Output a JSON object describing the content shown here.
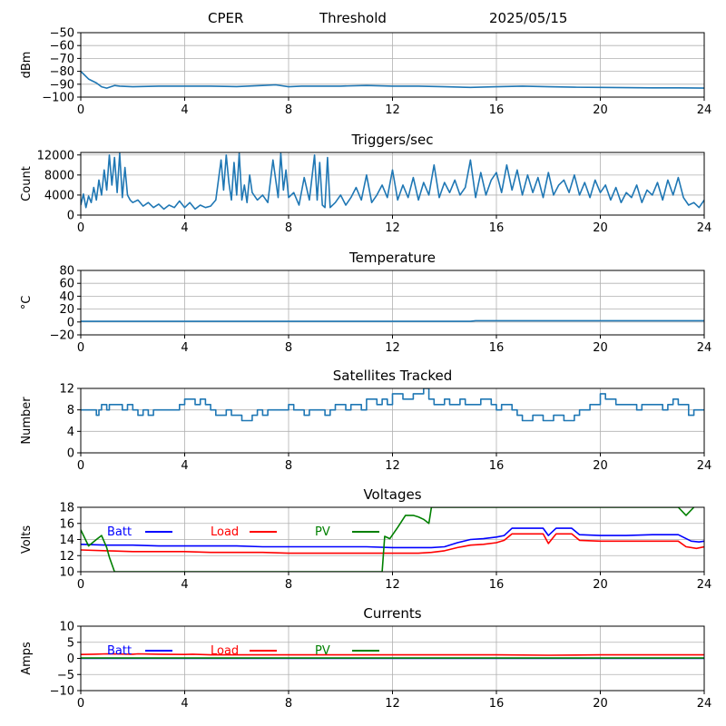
{
  "header": {
    "site": "CPER",
    "mode": "Threshold",
    "date": "2025/05/15"
  },
  "colors": {
    "series": "#1f77b4",
    "batt": "#0000ff",
    "load": "#ff0000",
    "pv": "#008000",
    "grid": "#b0b0b0"
  },
  "chart_data": [
    {
      "type": "line",
      "title": "",
      "xlabel": "",
      "ylabel": "dBm",
      "xlim": [
        0,
        24
      ],
      "ylim": [
        -100,
        -50
      ],
      "xticks": [
        0,
        4,
        8,
        12,
        16,
        20,
        24
      ],
      "yticks": [
        -100,
        -90,
        -80,
        -70,
        -60,
        -50
      ],
      "grid": true,
      "series": [
        {
          "color": "#1f77b4",
          "x": [
            0,
            0.3,
            0.6,
            0.8,
            1.0,
            1.3,
            1.5,
            2,
            3,
            4,
            5,
            6,
            7,
            7.5,
            8,
            8.5,
            9,
            10,
            11,
            12,
            13,
            14,
            15,
            16,
            17,
            18,
            19,
            20,
            21,
            22,
            23,
            24
          ],
          "y": [
            -80,
            -86,
            -89,
            -92,
            -93,
            -91,
            -91.5,
            -92,
            -91.5,
            -91.5,
            -91.5,
            -91.8,
            -91,
            -90.5,
            -92,
            -91.5,
            -91.5,
            -91.5,
            -91,
            -91.5,
            -91.5,
            -92,
            -92.5,
            -92,
            -91.5,
            -92,
            -92.3,
            -92.5,
            -92.7,
            -92.8,
            -92.8,
            -93
          ]
        }
      ]
    },
    {
      "type": "line",
      "title": "Triggers/sec",
      "xlabel": "",
      "ylabel": "Count",
      "xlim": [
        0,
        24
      ],
      "ylim": [
        0,
        12500
      ],
      "xticks": [
        0,
        4,
        8,
        12,
        16,
        20,
        24
      ],
      "yticks": [
        0,
        4000,
        8000,
        12000
      ],
      "grid": true,
      "series": [
        {
          "color": "#1f77b4",
          "x": [
            0,
            0.1,
            0.2,
            0.3,
            0.4,
            0.5,
            0.6,
            0.7,
            0.8,
            0.9,
            1.0,
            1.1,
            1.2,
            1.3,
            1.4,
            1.5,
            1.6,
            1.7,
            1.8,
            1.9,
            2.0,
            2.2,
            2.4,
            2.6,
            2.8,
            3.0,
            3.2,
            3.4,
            3.6,
            3.8,
            4.0,
            4.2,
            4.4,
            4.6,
            4.8,
            5.0,
            5.2,
            5.3,
            5.4,
            5.5,
            5.6,
            5.7,
            5.8,
            5.9,
            6.0,
            6.1,
            6.2,
            6.3,
            6.4,
            6.5,
            6.6,
            6.8,
            7.0,
            7.2,
            7.4,
            7.6,
            7.7,
            7.8,
            7.9,
            8.0,
            8.2,
            8.4,
            8.6,
            8.8,
            9.0,
            9.1,
            9.2,
            9.3,
            9.4,
            9.5,
            9.6,
            9.8,
            10.0,
            10.2,
            10.4,
            10.6,
            10.8,
            11.0,
            11.2,
            11.4,
            11.6,
            11.8,
            12.0,
            12.2,
            12.4,
            12.6,
            12.8,
            13.0,
            13.2,
            13.4,
            13.6,
            13.8,
            14.0,
            14.2,
            14.4,
            14.6,
            14.8,
            15.0,
            15.2,
            15.4,
            15.6,
            15.8,
            16.0,
            16.2,
            16.4,
            16.6,
            16.8,
            17.0,
            17.2,
            17.4,
            17.6,
            17.8,
            18.0,
            18.2,
            18.4,
            18.6,
            18.8,
            19.0,
            19.2,
            19.4,
            19.6,
            19.8,
            20.0,
            20.2,
            20.4,
            20.6,
            20.8,
            21.0,
            21.2,
            21.4,
            21.6,
            21.8,
            22.0,
            22.2,
            22.4,
            22.6,
            22.8,
            23.0,
            23.2,
            23.4,
            23.6,
            23.8,
            24.0
          ],
          "y": [
            2000,
            4200,
            1500,
            3800,
            2500,
            5500,
            3000,
            7000,
            4000,
            9000,
            5000,
            12000,
            6000,
            11500,
            4500,
            12300,
            3500,
            9500,
            4000,
            3000,
            2500,
            3000,
            1800,
            2500,
            1500,
            2200,
            1200,
            2000,
            1500,
            2800,
            1500,
            2500,
            1200,
            2000,
            1500,
            1800,
            3000,
            7000,
            11000,
            5000,
            12000,
            6500,
            3000,
            10500,
            4000,
            12300,
            3000,
            6000,
            2500,
            8000,
            4500,
            3000,
            4000,
            2500,
            11000,
            3500,
            12300,
            5000,
            9000,
            3500,
            4500,
            2000,
            7500,
            3000,
            12000,
            3000,
            10500,
            2000,
            1500,
            11500,
            1500,
            2500,
            4000,
            2000,
            3500,
            5500,
            3000,
            8000,
            2500,
            4000,
            6000,
            3500,
            9000,
            3000,
            6000,
            3500,
            7500,
            3000,
            6500,
            4000,
            10000,
            3500,
            6500,
            4500,
            7000,
            4000,
            5500,
            11000,
            3500,
            8500,
            4000,
            7000,
            8500,
            4500,
            10000,
            5000,
            9000,
            4000,
            8000,
            4500,
            7500,
            3500,
            8500,
            4000,
            6000,
            7000,
            4500,
            8000,
            4000,
            6500,
            3500,
            7000,
            4500,
            6000,
            3000,
            5500,
            2500,
            4500,
            3500,
            6000,
            2500,
            5000,
            4000,
            6500,
            3000,
            7000,
            4000,
            7500,
            3500,
            2000,
            2500,
            1500,
            3000
          ]
        }
      ]
    },
    {
      "type": "line",
      "title": "Temperature",
      "xlabel": "",
      "ylabel": "°C",
      "xlim": [
        0,
        24
      ],
      "ylim": [
        -20,
        80
      ],
      "xticks": [
        0,
        4,
        8,
        12,
        16,
        20,
        24
      ],
      "yticks": [
        -20,
        0,
        20,
        40,
        60,
        80
      ],
      "grid": true,
      "series": [
        {
          "color": "#1f77b4",
          "x": [
            0,
            4,
            8,
            12,
            15.0,
            15.2,
            20,
            24
          ],
          "y": [
            1,
            1,
            1,
            1,
            1,
            2,
            2,
            2
          ]
        }
      ]
    },
    {
      "type": "line",
      "title": "Satellites Tracked",
      "xlabel": "",
      "ylabel": "Number",
      "xlim": [
        0,
        24
      ],
      "ylim": [
        0,
        12
      ],
      "xticks": [
        0,
        4,
        8,
        12,
        16,
        20,
        24
      ],
      "yticks": [
        0,
        4,
        8,
        12
      ],
      "grid": true,
      "step": true,
      "series": [
        {
          "color": "#1f77b4",
          "x": [
            0,
            0.6,
            0.7,
            0.8,
            1.0,
            1.1,
            1.6,
            1.8,
            2.0,
            2.2,
            2.4,
            2.6,
            2.8,
            3.0,
            3.4,
            3.8,
            4.0,
            4.4,
            4.6,
            4.8,
            5.0,
            5.2,
            5.6,
            5.8,
            6.2,
            6.6,
            6.8,
            7.0,
            7.2,
            8.0,
            8.2,
            8.6,
            8.8,
            9.0,
            9.4,
            9.6,
            9.8,
            10.2,
            10.4,
            10.8,
            11.0,
            11.4,
            11.6,
            11.8,
            12.0,
            12.4,
            12.8,
            13.2,
            13.4,
            13.6,
            14.0,
            14.2,
            14.6,
            14.8,
            15.4,
            15.8,
            16.0,
            16.2,
            16.6,
            16.8,
            17.0,
            17.4,
            17.8,
            18.2,
            18.6,
            19.0,
            19.2,
            19.6,
            20.0,
            20.2,
            20.6,
            21.0,
            21.4,
            21.6,
            22.0,
            22.4,
            22.6,
            22.8,
            23.0,
            23.4,
            23.6,
            24.0
          ],
          "y": [
            8,
            7,
            8,
            9,
            8,
            9,
            8,
            9,
            8,
            7,
            8,
            7,
            8,
            8,
            8,
            9,
            10,
            9,
            10,
            9,
            8,
            7,
            8,
            7,
            6,
            7,
            8,
            7,
            8,
            9,
            8,
            7,
            8,
            8,
            7,
            8,
            9,
            8,
            9,
            8,
            10,
            9,
            10,
            9,
            11,
            10,
            11,
            12,
            10,
            9,
            10,
            9,
            10,
            9,
            10,
            9,
            8,
            9,
            8,
            7,
            6,
            7,
            6,
            7,
            6,
            7,
            8,
            9,
            11,
            10,
            9,
            9,
            8,
            9,
            9,
            8,
            9,
            10,
            9,
            7,
            8,
            8
          ]
        }
      ]
    },
    {
      "type": "line",
      "title": "Voltages",
      "xlabel": "",
      "ylabel": "Volts",
      "xlim": [
        0,
        24
      ],
      "ylim": [
        10,
        18
      ],
      "xticks": [
        0,
        4,
        8,
        12,
        16,
        20,
        24
      ],
      "yticks": [
        10,
        12,
        14,
        16,
        18
      ],
      "grid": true,
      "legend": "inline-top-left",
      "series": [
        {
          "name": "Batt",
          "color": "#0000ff",
          "x": [
            0,
            1,
            2,
            3,
            4,
            5,
            6,
            7,
            8,
            9,
            10,
            11,
            12,
            13,
            13.5,
            14,
            14.5,
            15,
            15.5,
            16,
            16.3,
            16.6,
            17,
            17.5,
            17.8,
            18.0,
            18.3,
            18.6,
            18.9,
            19.2,
            20,
            21,
            22,
            22.5,
            23.0,
            23.5,
            23.8,
            24
          ],
          "y": [
            13.4,
            13.3,
            13.3,
            13.2,
            13.2,
            13.2,
            13.2,
            13.1,
            13.1,
            13.1,
            13.1,
            13.1,
            13.0,
            13.0,
            13.0,
            13.1,
            13.6,
            14.0,
            14.1,
            14.3,
            14.5,
            15.4,
            15.4,
            15.4,
            15.4,
            14.5,
            15.4,
            15.4,
            15.4,
            14.6,
            14.5,
            14.5,
            14.6,
            14.6,
            14.6,
            13.8,
            13.7,
            13.8
          ]
        },
        {
          "name": "Load",
          "color": "#ff0000",
          "x": [
            0,
            1,
            2,
            3,
            4,
            5,
            6,
            7,
            8,
            9,
            10,
            11,
            12,
            13,
            13.5,
            14,
            14.5,
            15,
            15.5,
            16,
            16.3,
            16.6,
            17,
            17.5,
            17.8,
            18.0,
            18.3,
            18.6,
            18.9,
            19.2,
            20,
            21,
            22,
            22.5,
            23.0,
            23.3,
            23.7,
            24
          ],
          "y": [
            12.7,
            12.6,
            12.5,
            12.5,
            12.5,
            12.4,
            12.4,
            12.4,
            12.3,
            12.3,
            12.3,
            12.3,
            12.3,
            12.3,
            12.4,
            12.6,
            13.0,
            13.3,
            13.4,
            13.6,
            13.9,
            14.7,
            14.7,
            14.7,
            14.7,
            13.5,
            14.7,
            14.7,
            14.7,
            13.9,
            13.8,
            13.8,
            13.8,
            13.8,
            13.8,
            13.1,
            12.9,
            13.1
          ]
        },
        {
          "name": "PV",
          "color": "#008000",
          "x": [
            0,
            0.3,
            0.6,
            0.8,
            1.0,
            1.1,
            1.3,
            11.6,
            11.7,
            11.9,
            12.2,
            12.5,
            12.8,
            13.0,
            13.2,
            13.4,
            13.5,
            23.0,
            23.3,
            23.6
          ],
          "y": [
            15.2,
            13.2,
            14.0,
            14.5,
            13.0,
            11.8,
            10.0,
            10.0,
            14.4,
            14.1,
            15.5,
            17.0,
            17.0,
            16.8,
            16.5,
            16.0,
            18.0,
            18.0,
            17.0,
            18.0
          ]
        }
      ]
    },
    {
      "type": "line",
      "title": "Currents",
      "xlabel": "",
      "ylabel": "Amps",
      "xlim": [
        0,
        24
      ],
      "ylim": [
        -10,
        10
      ],
      "xticks": [
        0,
        4,
        8,
        12,
        16,
        20,
        24
      ],
      "yticks": [
        -10,
        -5,
        0,
        5,
        10
      ],
      "grid": true,
      "legend": "inline-top-left",
      "series": [
        {
          "name": "Batt",
          "color": "#0000ff",
          "x": [
            0,
            24
          ],
          "y": [
            0,
            0
          ]
        },
        {
          "name": "Load",
          "color": "#ff0000",
          "x": [
            0,
            0.5,
            1,
            2,
            2.2,
            3,
            4,
            4.3,
            5,
            8,
            12,
            16,
            18,
            20,
            24
          ],
          "y": [
            1.2,
            1.3,
            1.4,
            1.3,
            1.4,
            1.3,
            1.2,
            1.3,
            1.1,
            1.1,
            1.1,
            1.1,
            1.0,
            1.1,
            1.1
          ]
        },
        {
          "name": "PV",
          "color": "#008000",
          "x": [
            0,
            24
          ],
          "y": [
            0.1,
            0.1
          ]
        }
      ]
    }
  ]
}
